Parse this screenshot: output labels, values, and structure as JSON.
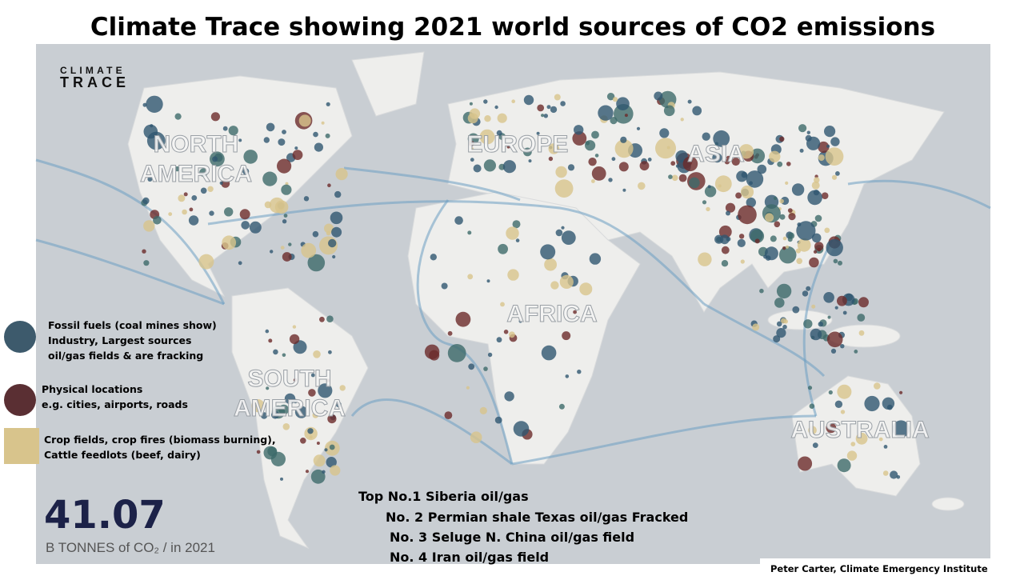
{
  "title": "Climate Trace showing 2021 world sources of CO2 emissions",
  "logo": {
    "lines": [
      "CLIMATE",
      "TRACE"
    ]
  },
  "continent_labels": [
    {
      "lines": [
        "NORTH",
        "AMERICA"
      ]
    },
    {
      "lines": [
        "EUROPE"
      ]
    },
    {
      "lines": [
        "ASIA"
      ]
    },
    {
      "lines": [
        "AFRICA"
      ]
    },
    {
      "lines": [
        "SOUTH",
        "AMERICA"
      ]
    },
    {
      "lines": [
        "AUSTRALIA"
      ]
    }
  ],
  "legend": [
    {
      "lines": [
        "Fossil fuels (coal mines show)",
        "Industry, Largest sources",
        "oil/gas fields & are fracking"
      ]
    },
    {
      "lines": [
        "Physical locations",
        "e.g. cities, airports, roads"
      ]
    },
    {
      "lines": [
        "Crop fields, crop fires (biomass burning),",
        "Cattle feedlots (beef, dairy)"
      ]
    }
  ],
  "total": {
    "value": 41.07,
    "caption": "B TONNES of CO₂ / in 2021"
  },
  "top_sources": [
    "Top No.1 Siberia oil/gas",
    "No. 2 Permian shale Texas oil/gas Fracked",
    "No. 3 Seluge N. China oil/gas field",
    "No. 4 Iran oil/gas field"
  ],
  "credit": "Peter Carter, Climate Emergency Institute"
}
